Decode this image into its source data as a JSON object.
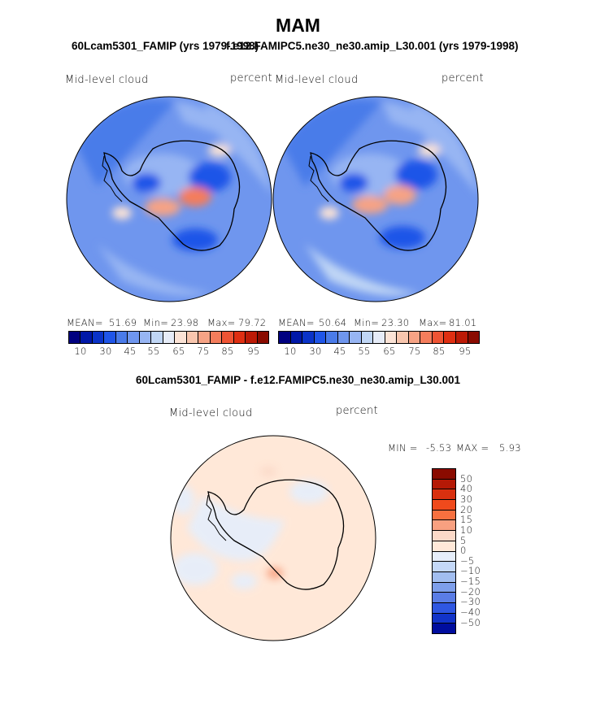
{
  "page": {
    "title": "MAM",
    "subtitle_left": "60Lcam5301_FAMIP (yrs 1979-1998)",
    "subtitle_right": "f.e12.FAMIPC5.ne30_ne30.amip_L30.001 (yrs 1979-1998)",
    "diff_title": "60Lcam5301_FAMIP - f.e12.FAMIPC5.ne30_ne30.amip_L30.001"
  },
  "chart_data": [
    {
      "type": "heatmap",
      "name": "panel-left",
      "projection": "south-polar-stereographic",
      "region": "Antarctica",
      "variable_label": "Mid-level cloud",
      "units_label": "percent",
      "stats": {
        "mean_label": "MEAN=",
        "mean": "51.69",
        "min_label": "Min=",
        "min": "23.98",
        "max_label": "Max=",
        "max": "79.72"
      },
      "colorbar_ticks": [
        "10",
        "30",
        "45",
        "55",
        "65",
        "75",
        "85",
        "95"
      ]
    },
    {
      "type": "heatmap",
      "name": "panel-right",
      "projection": "south-polar-stereographic",
      "region": "Antarctica",
      "variable_label": "Mid-level cloud",
      "units_label": "percent",
      "stats": {
        "mean_label": "MEAN=",
        "mean": "50.64",
        "min_label": "Min=",
        "min": "23.30",
        "max_label": "Max=",
        "max": "81.01"
      },
      "colorbar_ticks": [
        "10",
        "30",
        "45",
        "55",
        "65",
        "75",
        "85",
        "95"
      ]
    },
    {
      "type": "heatmap",
      "name": "panel-difference",
      "projection": "south-polar-stereographic",
      "region": "Antarctica",
      "variable_label": "Mid-level cloud",
      "units_label": "percent",
      "stats": {
        "min_label": "MIN =",
        "min": "-5.53",
        "max_label": "MAX =",
        "max": "5.93"
      },
      "colorbar_ticks": [
        "50",
        "40",
        "30",
        "20",
        "15",
        "10",
        "5",
        "0",
        "−5",
        "−10",
        "−15",
        "−20",
        "−30",
        "−40",
        "−50"
      ]
    }
  ],
  "colors": {
    "abs_scale": [
      "#000080",
      "#0018a8",
      "#0a33c8",
      "#1f55e8",
      "#4a7be9",
      "#6f96ee",
      "#97b5f3",
      "#c0d6f5",
      "#e6ecf8",
      "#fbe3d6",
      "#f8c6ae",
      "#f6a385",
      "#f47d5c",
      "#ef5434",
      "#df2f12",
      "#bc1a06",
      "#8a0b00"
    ],
    "diff_scale": [
      "#8a0b00",
      "#b51906",
      "#d9300f",
      "#f04a1c",
      "#f7703f",
      "#f8a080",
      "#fbd9c8",
      "#ffe8d8",
      "#e6eefa",
      "#c4d8f8",
      "#a2bef0",
      "#7e9feb",
      "#5a7de6",
      "#2f57e2",
      "#1234c9",
      "#000d9e"
    ]
  }
}
